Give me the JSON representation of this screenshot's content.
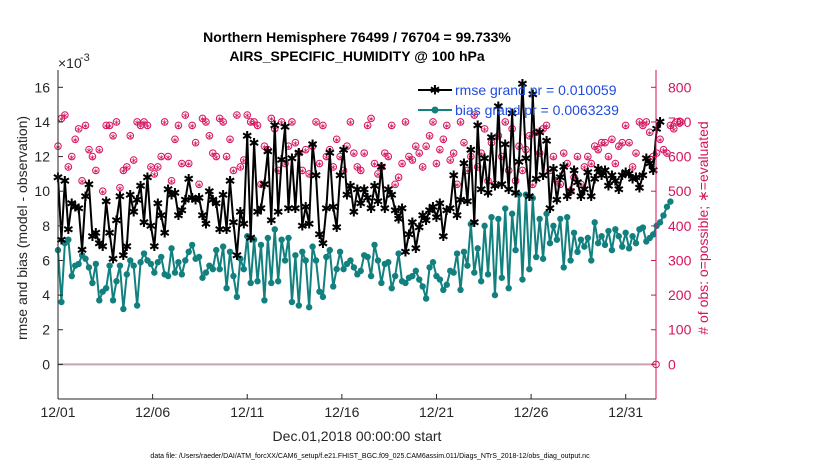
{
  "chart_data": {
    "type": "line",
    "title_line1": "Northern Hemisphere 76499 / 76704 = 99.733%",
    "title_line2": "AIRS_SPECIFIC_HUMIDITY @ 100 hPa",
    "exponent_prefix": "×10",
    "exponent_power": "-3",
    "xlabel": "Dec.01,2018 00:00:00 start",
    "ylabel": "rmse and bias (model - observation)",
    "ylabel_right": "# of obs: o=possible; ∗=evaluated",
    "footer": "data file: /Users/raeder/DAI/ATM_forcXX/CAM6_setup/f.e21.FHIST_BGC.f09_025.CAM6assim.011/Diags_NTrS_2018-12/obs_diag_output.nc",
    "xlim": [
      0,
      31.6
    ],
    "ylim": [
      -2,
      17
    ],
    "ylim_right": [
      -100,
      850
    ],
    "x_ticks": [
      0,
      5,
      10,
      15,
      20,
      25,
      30
    ],
    "x_tick_labels": [
      "12/01",
      "12/06",
      "12/11",
      "12/16",
      "12/21",
      "12/26",
      "12/31"
    ],
    "y_ticks": [
      0,
      2,
      4,
      6,
      8,
      10,
      12,
      14,
      16
    ],
    "y_tick_labels": [
      "0",
      "2",
      "4",
      "6",
      "8",
      "10",
      "12",
      "14",
      "16"
    ],
    "y_ticks_right": [
      0,
      100,
      200,
      300,
      400,
      500,
      600,
      700,
      800
    ],
    "y_tick_labels_right": [
      "0",
      "100",
      "200",
      "300",
      "400",
      "500",
      "600",
      "700",
      "800"
    ],
    "colors": {
      "rmse": "#000000",
      "bias": "#12807f",
      "obs": "#d6135e",
      "legend_text": "#1f4be0",
      "zero_line": "#c6a5ad"
    },
    "series": [
      {
        "name": "rmse grand pr = 0.010059",
        "key": "rmse",
        "values": [
          10.8,
          7.2,
          10.6,
          7.8,
          9.3,
          9.1,
          9.0,
          6.6,
          9.7,
          10.4,
          7.4,
          7.6,
          7.0,
          6.8,
          9.4,
          7.6,
          6.1,
          8.3,
          9.7,
          6.3,
          6.8,
          9.8,
          8.8,
          9.5,
          10.3,
          8.2,
          10.8,
          8.0,
          6.8,
          9.3,
          8.6,
          7.6,
          10.1,
          9.8,
          9.9,
          8.6,
          8.9,
          9.5,
          10.7,
          9.6,
          9.5,
          9.6,
          8.6,
          8.1,
          10.0,
          9.5,
          9.3,
          7.8,
          9.8,
          7.8,
          10.6,
          8.2,
          6.3,
          8.8,
          8.1,
          13.2,
          7.3,
          12.8,
          8.8,
          9.0,
          10.4,
          12.3,
          8.3,
          13.8,
          8.8,
          11.8,
          13.7,
          9.0,
          11.9,
          9.0,
          12.2,
          8.0,
          9.1,
          8.1,
          12.7,
          10.9,
          7.5,
          7.0,
          9.0,
          12.2,
          9.1,
          7.9,
          10.9,
          12.4,
          9.8,
          10.3,
          8.8,
          10.1,
          9.3,
          10.1,
          9.6,
          9.0,
          10.3,
          9.4,
          11.4,
          9.0,
          10.1,
          9.8,
          8.9,
          8.4,
          9.0,
          6.5,
          7.5,
          8.2,
          6.7,
          7.9,
          8.6,
          8.3,
          8.9,
          9.1,
          8.5,
          9.3,
          7.4,
          8.9,
          9.0,
          10.9,
          8.6,
          9.5,
          11.6,
          9.4,
          12.4,
          8.2,
          13.8,
          10.1,
          11.9,
          9.9,
          13.1,
          10.3,
          14.9,
          10.4,
          12.7,
          10.1,
          14.5,
          9.9,
          11.7,
          16.2,
          11.9,
          9.7,
          15.6,
          10.7,
          13.4,
          10.9,
          12.9,
          9.0,
          11.3,
          9.5,
          10.8,
          11.4,
          9.7,
          10.0,
          11.2,
          10.5,
          9.7,
          10.1,
          11.1,
          9.7,
          10.7,
          11.3,
          10.9,
          11.2,
          10.3,
          10.9,
          10.6,
          10.1,
          10.9,
          11.1,
          11.0,
          10.7,
          10.8,
          10.2,
          10.9,
          11.9,
          11.6,
          11.2,
          13.6,
          14.0
        ],
        "data_start": 0,
        "data_step": 0.1818
      },
      {
        "name": "bias grand pr = 0.0063239",
        "key": "bias",
        "values": [
          6.6,
          3.6,
          7.0,
          7.2,
          5.1,
          5.7,
          5.8,
          6.3,
          6.1,
          5.6,
          4.7,
          5.8,
          3.7,
          4.2,
          4.4,
          5.7,
          3.7,
          4.8,
          5.7,
          3.2,
          5.2,
          6.0,
          5.7,
          3.4,
          5.9,
          6.4,
          6.0,
          5.8,
          5.3,
          5.9,
          6.2,
          5.2,
          5.1,
          6.7,
          5.3,
          5.9,
          5.2,
          6.0,
          6.5,
          6.9,
          6.1,
          6.2,
          5.0,
          5.3,
          5.7,
          5.5,
          6.6,
          5.5,
          6.8,
          4.4,
          6.5,
          5.1,
          3.9,
          6.1,
          5.5,
          7.4,
          4.7,
          7.2,
          4.8,
          6.9,
          3.7,
          7.3,
          4.7,
          7.8,
          4.8,
          7.2,
          6.0,
          7.3,
          3.6,
          6.3,
          3.4,
          6.5,
          6.0,
          3.3,
          6.8,
          6.0,
          4.2,
          3.9,
          6.2,
          6.6,
          4.5,
          5.5,
          6.5,
          5.5,
          5.8,
          6.0,
          5.6,
          5.2,
          5.4,
          6.3,
          6.2,
          5.1,
          6.9,
          6.0,
          4.7,
          5.8,
          5.9,
          4.4,
          5.1,
          6.4,
          4.8,
          4.7,
          5.0,
          5.1,
          5.4,
          4.9,
          4.5,
          3.8,
          5.6,
          5.9,
          5.1,
          4.9,
          4.3,
          4.6,
          5.4,
          5.3,
          6.4,
          4.3,
          6.5,
          5.7,
          8.1,
          5.3,
          6.7,
          4.8,
          8.0,
          5.2,
          8.5,
          4.0,
          8.4,
          5.0,
          9.0,
          4.4,
          8.7,
          6.6,
          9.8,
          4.9,
          9.8,
          5.5,
          9.6,
          6.2,
          8.4,
          6.1,
          8.7,
          7.0,
          8.0,
          7.2,
          8.4,
          5.6,
          8.5,
          6.0,
          7.6,
          6.5,
          7.2,
          6.8,
          7.3,
          6.0,
          8.2,
          7.0,
          7.4,
          6.9,
          7.7,
          6.6,
          7.8,
          7.4,
          6.8,
          7.6,
          6.7,
          7.4,
          7.0,
          7.8,
          7.9,
          7.1,
          7.3,
          7.5,
          8.0,
          8.2,
          8.6,
          9.1,
          9.4
        ],
        "data_start": 0,
        "data_step": 0.1818
      },
      {
        "name": "possible",
        "key": "obs",
        "values": [
          630,
          710,
          720,
          570,
          600,
          650,
          680,
          530,
          690,
          620,
          600,
          560,
          620,
          500,
          690,
          690,
          660,
          700,
          510,
          560,
          570,
          660,
          590,
          700,
          690,
          700,
          690,
          570,
          550,
          570,
          600,
          700,
          600,
          530,
          650,
          690,
          580,
          720,
          580,
          690,
          640,
          520,
          710,
          700,
          660,
          610,
          600,
          710,
          700,
          600,
          650,
          560,
          720,
          570,
          590,
          720,
          700,
          700,
          690,
          520,
          630,
          620,
          710,
          680,
          560,
          700,
          580,
          630,
          700,
          640,
          610,
          560,
          620,
          550,
          630,
          700,
          580,
          690,
          600,
          620,
          570,
          650,
          600,
          560,
          630,
          700,
          610,
          570,
          560,
          610,
          690,
          710,
          580,
          550,
          570,
          610,
          600,
          690,
          520,
          540,
          580,
          700,
          600,
          590,
          630,
          610,
          570,
          630,
          660,
          700,
          580,
          620,
          650,
          690,
          590,
          610,
          520,
          700,
          640,
          560,
          600,
          720,
          570,
          610,
          680,
          530,
          640,
          520,
          660,
          600,
          700,
          560,
          680,
          530,
          630,
          560,
          620,
          660,
          520,
          670,
          610,
          680,
          690,
          560,
          600,
          530,
          520,
          610,
          580,
          500,
          540,
          600,
          520,
          570,
          600,
          580,
          630,
          620,
          640,
          640,
          600,
          650,
          580,
          630,
          640,
          690,
          640,
          570,
          610,
          700,
          690,
          700,
          670,
          600,
          610,
          650,
          620,
          610,
          690,
          680,
          700,
          700
        ],
        "data_start": 0,
        "data_step": 0.1818
      }
    ],
    "legend": [
      {
        "label": "rmse grand pr = 0.010059",
        "series": "rmse"
      },
      {
        "label": "bias grand pr = 0.0063239",
        "series": "bias"
      }
    ],
    "legend_location": "top-right",
    "grid": false
  }
}
